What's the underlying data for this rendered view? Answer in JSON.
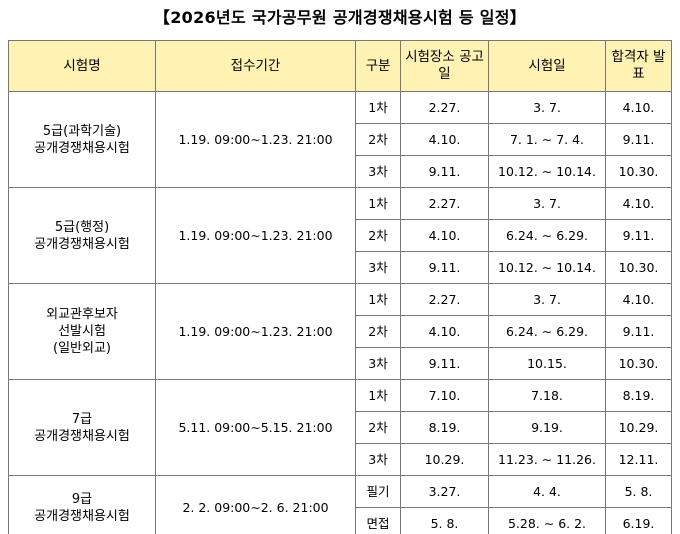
{
  "title": "【2026년도 국가공무원 공개경쟁채용시험 등 일정】",
  "headers": {
    "exam_name": "시험명",
    "application_period": "접수기간",
    "division": "구분",
    "venue_notice": "시험장소 공고일",
    "exam_date": "시험일",
    "result": "합격자 발표"
  },
  "exams": [
    {
      "name_lines": [
        "5급(과학기술)",
        "공개경쟁채용시험"
      ],
      "period": "1.19. 09:00∼1.23. 21:00",
      "rows": [
        {
          "division": "1차",
          "notice": "2.27.",
          "date": "3. 7.",
          "result": "4.10."
        },
        {
          "division": "2차",
          "notice": "4.10.",
          "date": "7. 1. ∼ 7. 4.",
          "result": "9.11."
        },
        {
          "division": "3차",
          "notice": "9.11.",
          "date": "10.12. ∼ 10.14.",
          "result": "10.30."
        }
      ]
    },
    {
      "name_lines": [
        "5급(행정)",
        "공개경쟁채용시험"
      ],
      "period": "1.19. 09:00∼1.23. 21:00",
      "rows": [
        {
          "division": "1차",
          "notice": "2.27.",
          "date": "3. 7.",
          "result": "4.10."
        },
        {
          "division": "2차",
          "notice": "4.10.",
          "date": "6.24. ∼ 6.29.",
          "result": "9.11."
        },
        {
          "division": "3차",
          "notice": "9.11.",
          "date": "10.12. ∼ 10.14.",
          "result": "10.30."
        }
      ]
    },
    {
      "name_lines": [
        "외교관후보자",
        "선발시험",
        "(일반외교)"
      ],
      "period": "1.19. 09:00∼1.23. 21:00",
      "rows": [
        {
          "division": "1차",
          "notice": "2.27.",
          "date": "3. 7.",
          "result": "4.10."
        },
        {
          "division": "2차",
          "notice": "4.10.",
          "date": "6.24. ∼ 6.29.",
          "result": "9.11."
        },
        {
          "division": "3차",
          "notice": "9.11.",
          "date": "10.15.",
          "result": "10.30."
        }
      ]
    },
    {
      "name_lines": [
        "7급",
        "공개경쟁채용시험"
      ],
      "period": "5.11. 09:00∼5.15. 21:00",
      "rows": [
        {
          "division": "1차",
          "notice": "7.10.",
          "date": "7.18.",
          "result": "8.19."
        },
        {
          "division": "2차",
          "notice": "8.19.",
          "date": "9.19.",
          "result": "10.29."
        },
        {
          "division": "3차",
          "notice": "10.29.",
          "date": "11.23. ∼ 11.26.",
          "result": "12.11."
        }
      ]
    },
    {
      "name_lines": [
        "9급",
        "공개경쟁채용시험"
      ],
      "period": "2. 2. 09:00∼2. 6. 21:00",
      "rows": [
        {
          "division": "필기",
          "notice": "3.27.",
          "date": "4. 4.",
          "result": "5. 8."
        },
        {
          "division": "면접",
          "notice": "5. 8.",
          "date": "5.28. ∼ 6. 2.",
          "result": "6.19."
        }
      ]
    }
  ]
}
